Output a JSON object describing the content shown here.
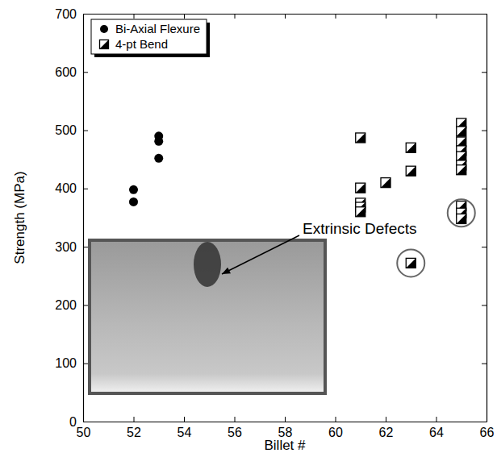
{
  "chart_data": {
    "type": "scatter",
    "xlabel": "Billet #",
    "ylabel": "Strength (MPa)",
    "xlim": [
      50,
      66
    ],
    "ylim": [
      0,
      700
    ],
    "xticks": [
      50,
      52,
      54,
      56,
      58,
      60,
      62,
      64,
      66
    ],
    "yticks": [
      0,
      100,
      200,
      300,
      400,
      500,
      600,
      700
    ],
    "legend": "upper left",
    "series": [
      {
        "name": "Bi-Axial Flexure",
        "color": "#000000",
        "marker": "circle",
        "x": [
          52,
          52,
          53,
          53,
          53
        ],
        "values": [
          398,
          377,
          490,
          481,
          452
        ]
      },
      {
        "name": "4-pt Bend",
        "color": "#000000",
        "marker": "half-square",
        "x": [
          61,
          61,
          61,
          61,
          61,
          62,
          63,
          63,
          63,
          65,
          65,
          65,
          65,
          65,
          65,
          65,
          65,
          65,
          65
        ],
        "values": [
          487,
          401,
          375,
          368,
          360,
          410,
          470,
          430,
          272,
          512,
          498,
          480,
          465,
          455,
          440,
          432,
          370,
          358,
          348
        ]
      }
    ],
    "annotations": [
      {
        "text": "Extrinsic Defects",
        "x": [
          63,
          65
        ],
        "y": [
          272,
          358
        ]
      }
    ]
  }
}
